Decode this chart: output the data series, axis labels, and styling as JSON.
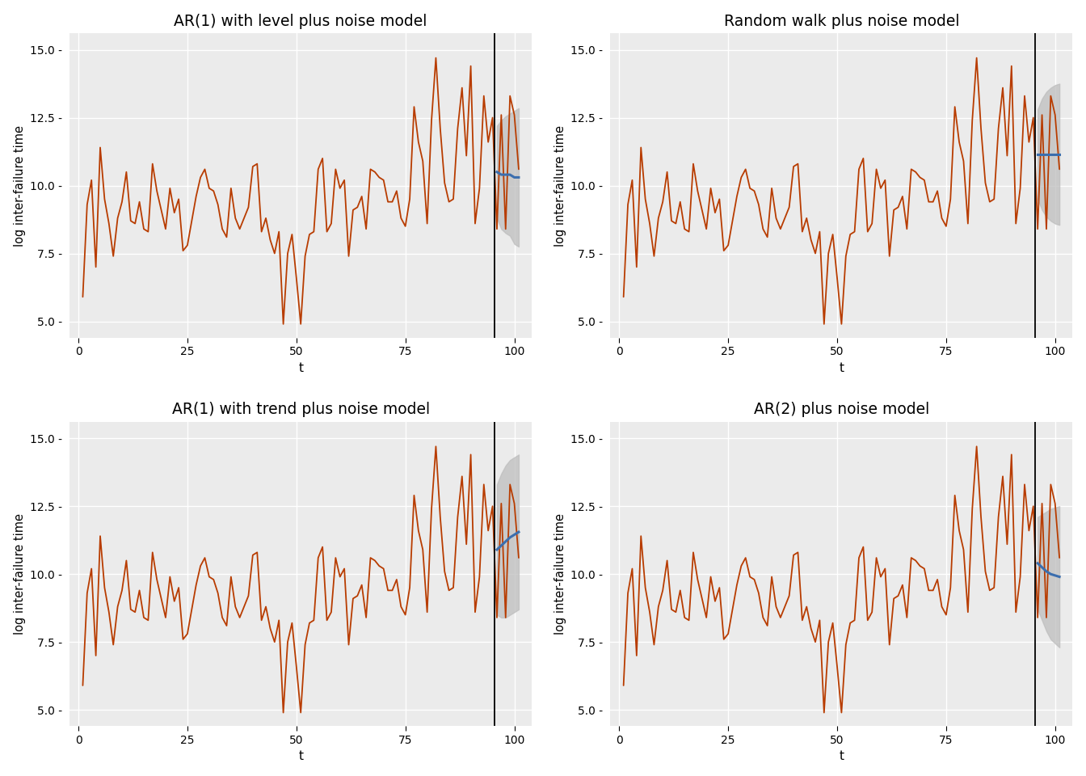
{
  "titles": [
    "AR(1) with level plus noise model",
    "Random walk plus noise model",
    "AR(1) with trend plus noise model",
    "AR(2) plus noise model"
  ],
  "ylabel": "log inter-failure time",
  "xlabel": "t",
  "vline_x": 94.5,
  "n_total": 101,
  "ylim": [
    4.4,
    15.6
  ],
  "yticks": [
    5.0,
    7.5,
    10.0,
    12.5,
    15.0
  ],
  "xticks": [
    0,
    25,
    50,
    75,
    100
  ],
  "xlim": [
    -2,
    104
  ],
  "bg_color": "#EBEBEB",
  "grid_color": "white",
  "line_color": "#B83C00",
  "forecast_color": "#3B6EAE",
  "shade_color": "#BEBEBE",
  "vline_color": "black",
  "y_data": [
    5.9,
    9.3,
    10.2,
    7.0,
    11.4,
    9.5,
    8.6,
    7.4,
    8.8,
    9.4,
    10.5,
    8.7,
    8.6,
    9.4,
    8.4,
    8.3,
    10.8,
    9.8,
    9.1,
    8.4,
    9.9,
    9.0,
    9.5,
    7.6,
    7.8,
    8.7,
    9.6,
    10.3,
    10.6,
    9.9,
    9.8,
    9.3,
    8.4,
    8.1,
    9.9,
    8.8,
    8.4,
    8.8,
    9.2,
    10.7,
    10.8,
    8.3,
    8.8,
    8.0,
    7.5,
    8.3,
    4.9,
    7.5,
    8.2,
    6.6,
    4.9,
    7.4,
    8.2,
    8.3,
    10.6,
    11.0,
    8.3,
    8.6,
    10.6,
    9.9,
    10.2,
    7.4,
    9.1,
    9.2,
    9.6,
    8.4,
    10.6,
    10.5,
    10.3,
    10.2,
    9.4,
    9.4,
    9.8,
    8.8,
    8.5,
    9.5,
    12.9,
    11.6,
    10.9,
    8.6,
    12.4,
    14.7,
    12.1,
    10.1,
    9.4,
    9.5,
    12.1,
    13.6,
    11.1,
    14.4,
    8.6,
    9.9,
    13.3,
    11.6,
    12.5,
    8.4,
    12.6,
    8.4,
    13.3,
    12.6,
    10.6
  ],
  "test_start_idx": 95,
  "forecast_means": {
    "model1": [
      10.5,
      10.4,
      10.4,
      10.4,
      10.3,
      10.3
    ],
    "model2": [
      11.15,
      11.15,
      11.15,
      11.15,
      11.15,
      11.15
    ],
    "model3": [
      10.9,
      11.05,
      11.2,
      11.35,
      11.45,
      11.55
    ],
    "model4": [
      10.4,
      10.25,
      10.1,
      10.0,
      9.95,
      9.9
    ]
  },
  "forecast_upper": {
    "model1": [
      12.2,
      12.4,
      12.55,
      12.65,
      12.75,
      12.85
    ],
    "model2": [
      12.8,
      13.2,
      13.45,
      13.6,
      13.7,
      13.75
    ],
    "model3": [
      13.3,
      13.7,
      14.0,
      14.2,
      14.3,
      14.4
    ],
    "model4": [
      12.1,
      12.2,
      12.3,
      12.4,
      12.45,
      12.5
    ]
  },
  "forecast_lower": {
    "model1": [
      8.8,
      8.4,
      8.25,
      8.15,
      7.85,
      7.75
    ],
    "model2": [
      9.5,
      9.1,
      8.85,
      8.7,
      8.6,
      8.55
    ],
    "model3": [
      8.5,
      8.4,
      8.4,
      8.5,
      8.6,
      8.7
    ],
    "model4": [
      8.7,
      8.3,
      7.9,
      7.6,
      7.45,
      7.3
    ]
  }
}
